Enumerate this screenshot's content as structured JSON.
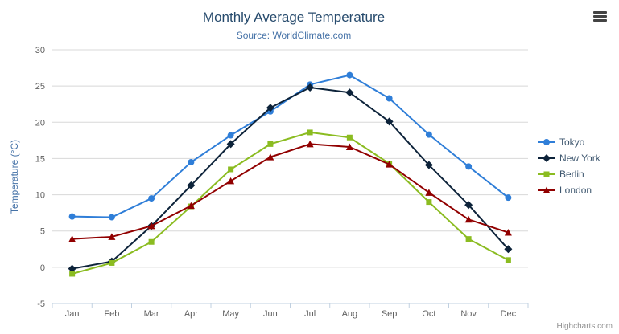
{
  "header": {
    "title": "Monthly Average Temperature",
    "subtitle": "Source: WorldClimate.com"
  },
  "credits": {
    "label": "Highcharts.com"
  },
  "export_menu": {
    "icon": "hamburger-menu-icon"
  },
  "chart_data": {
    "type": "line",
    "title": "Monthly Average Temperature",
    "subtitle": "Source: WorldClimate.com",
    "categories": [
      "Jan",
      "Feb",
      "Mar",
      "Apr",
      "May",
      "Jun",
      "Jul",
      "Aug",
      "Sep",
      "Oct",
      "Nov",
      "Dec"
    ],
    "series": [
      {
        "name": "Tokyo",
        "color": "#2f7ed8",
        "marker": "circle",
        "values": [
          7.0,
          6.9,
          9.5,
          14.5,
          18.2,
          21.5,
          25.2,
          26.5,
          23.3,
          18.3,
          13.9,
          9.6
        ]
      },
      {
        "name": "New York",
        "color": "#0d233a",
        "marker": "diamond",
        "values": [
          -0.2,
          0.8,
          5.7,
          11.3,
          17.0,
          22.0,
          24.8,
          24.1,
          20.1,
          14.1,
          8.6,
          2.5
        ]
      },
      {
        "name": "Berlin",
        "color": "#8bbc21",
        "marker": "square",
        "values": [
          -0.9,
          0.6,
          3.5,
          8.4,
          13.5,
          17.0,
          18.6,
          17.9,
          14.3,
          9.0,
          3.9,
          1.0
        ]
      },
      {
        "name": "London",
        "color": "#910000",
        "marker": "triangle",
        "values": [
          3.9,
          4.2,
          5.7,
          8.5,
          11.9,
          15.2,
          17.0,
          16.6,
          14.2,
          10.3,
          6.6,
          4.8
        ]
      }
    ],
    "xlabel": "",
    "ylabel": "Temperature (°C)",
    "ylim": [
      -5,
      30
    ],
    "ytick_step": 5,
    "grid": true,
    "legend_position": "right",
    "axis_label_color": "#606060",
    "gridline_color": "#d8d8d8",
    "axis_line_color": "#c0d0e0"
  }
}
